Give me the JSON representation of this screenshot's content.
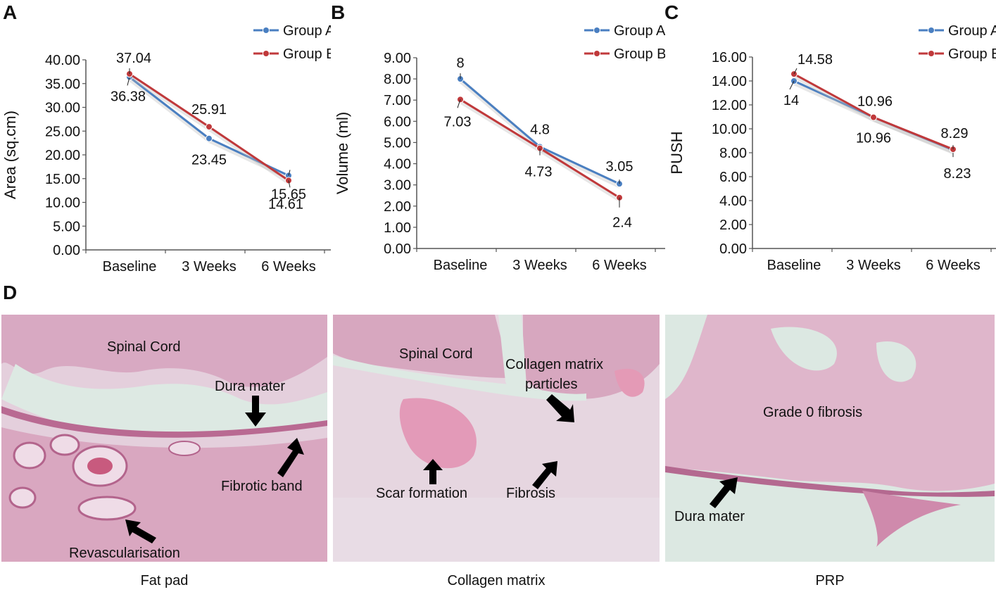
{
  "panels": {
    "a": "A",
    "b": "B",
    "c": "C",
    "d": "D"
  },
  "chart_data": [
    {
      "type": "line",
      "categories": [
        "Baseline",
        "3 Weeks",
        "6 Weeks"
      ],
      "series": [
        {
          "name": "Group A",
          "values": [
            36.38,
            23.45,
            15.65
          ],
          "labels": [
            "36.38",
            "23.45",
            "15.65"
          ]
        },
        {
          "name": "Group B",
          "values": [
            37.04,
            25.91,
            14.61
          ],
          "labels": [
            "37.04",
            "25.91",
            "14.61"
          ]
        }
      ],
      "ylabel": "Area (sq.cm)",
      "ylim": [
        0,
        40
      ],
      "yticks": [
        "0.00",
        "5.00",
        "10.00",
        "15.00",
        "20.00",
        "25.00",
        "30.00",
        "35.00",
        "40.00"
      ],
      "legend_position": "top-right",
      "grid": false
    },
    {
      "type": "line",
      "categories": [
        "Baseline",
        "3 Weeks",
        "6 Weeks"
      ],
      "series": [
        {
          "name": "Group A",
          "values": [
            8,
            4.8,
            3.05
          ],
          "labels": [
            "8",
            "4.8",
            "3.05"
          ]
        },
        {
          "name": "Group B",
          "values": [
            7.03,
            4.73,
            2.4
          ],
          "labels": [
            "7.03",
            "4.73",
            "2.4"
          ]
        }
      ],
      "ylabel": "Volume (ml)",
      "ylim": [
        0,
        9
      ],
      "yticks": [
        "0.00",
        "1.00",
        "2.00",
        "3.00",
        "4.00",
        "5.00",
        "6.00",
        "7.00",
        "8.00",
        "9.00"
      ],
      "legend_position": "top-right",
      "grid": false
    },
    {
      "type": "line",
      "categories": [
        "Baseline",
        "3 Weeks",
        "6 Weeks"
      ],
      "series": [
        {
          "name": "Group A",
          "values": [
            14,
            10.96,
            8.23
          ],
          "labels": [
            "14",
            "10.96",
            "8.23"
          ]
        },
        {
          "name": "Group B",
          "values": [
            14.58,
            10.96,
            8.29
          ],
          "labels": [
            "14.58",
            "10.96",
            "8.29"
          ]
        }
      ],
      "ylabel": "PUSH",
      "ylim": [
        0,
        16
      ],
      "yticks": [
        "0.00",
        "2.00",
        "4.00",
        "6.00",
        "8.00",
        "10.00",
        "12.00",
        "14.00",
        "16.00"
      ],
      "legend_position": "top-right",
      "grid": false
    }
  ],
  "colors": {
    "group_a": "#4a7fc1",
    "group_b": "#c0393b",
    "tissue_pink": "#d9a3bd",
    "tissue_light": "#e8d6e2",
    "space": "#d4e4dd"
  },
  "micrographs": [
    {
      "caption": "Fat pad",
      "labels": {
        "spinal_cord": "Spinal Cord",
        "dura_mater": "Dura mater",
        "fibrotic_band": "Fibrotic band",
        "revascularisation": "Revascularisation"
      }
    },
    {
      "caption": "Collagen matrix",
      "labels": {
        "spinal_cord": "Spinal Cord",
        "collagen_line1": "Collagen matrix",
        "collagen_line2": "particles",
        "scar_formation": "Scar formation",
        "fibrosis": "Fibrosis"
      }
    },
    {
      "caption": "PRP",
      "labels": {
        "grade0": "Grade 0 fibrosis",
        "dura_mater": "Dura mater"
      }
    }
  ]
}
